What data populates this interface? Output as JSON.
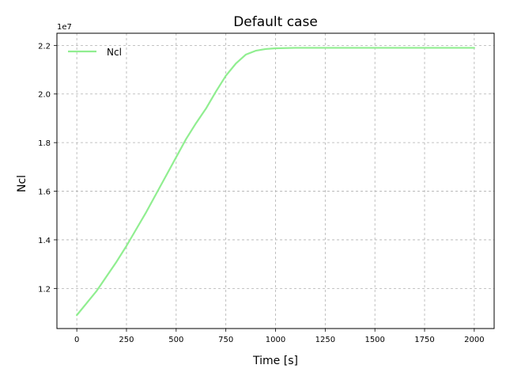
{
  "chart_data": {
    "type": "line",
    "title": "Default case",
    "xlabel": "Time [s]",
    "ylabel": "Ncl",
    "y_multiplier_label": "1e7",
    "xlim": [
      -100,
      2100
    ],
    "ylim": [
      1.035,
      2.25
    ],
    "xticks": [
      0,
      250,
      500,
      750,
      1000,
      1250,
      1500,
      1750,
      2000
    ],
    "xtick_labels": [
      "0",
      "250",
      "500",
      "750",
      "1000",
      "1250",
      "1500",
      "1750",
      "2000"
    ],
    "yticks": [
      1.2,
      1.4,
      1.6,
      1.8,
      2.0,
      2.2
    ],
    "ytick_labels": [
      "1.2",
      "1.4",
      "1.6",
      "1.8",
      "2.0",
      "2.2"
    ],
    "grid": true,
    "legend_position": "top-left",
    "series": [
      {
        "name": "Ncl",
        "color": "#90ee90",
        "x": [
          0,
          50,
          100,
          150,
          200,
          250,
          300,
          350,
          400,
          450,
          500,
          550,
          600,
          650,
          700,
          750,
          800,
          850,
          900,
          950,
          1000,
          1100,
          1200,
          1300,
          1400,
          1500,
          1600,
          1700,
          1800,
          1900,
          2000
        ],
        "y": [
          1.09,
          1.14,
          1.19,
          1.25,
          1.31,
          1.375,
          1.445,
          1.515,
          1.59,
          1.665,
          1.74,
          1.815,
          1.88,
          1.94,
          2.01,
          2.075,
          2.125,
          2.162,
          2.178,
          2.185,
          2.188,
          2.19,
          2.19,
          2.19,
          2.19,
          2.19,
          2.19,
          2.19,
          2.19,
          2.19,
          2.19
        ]
      }
    ]
  }
}
